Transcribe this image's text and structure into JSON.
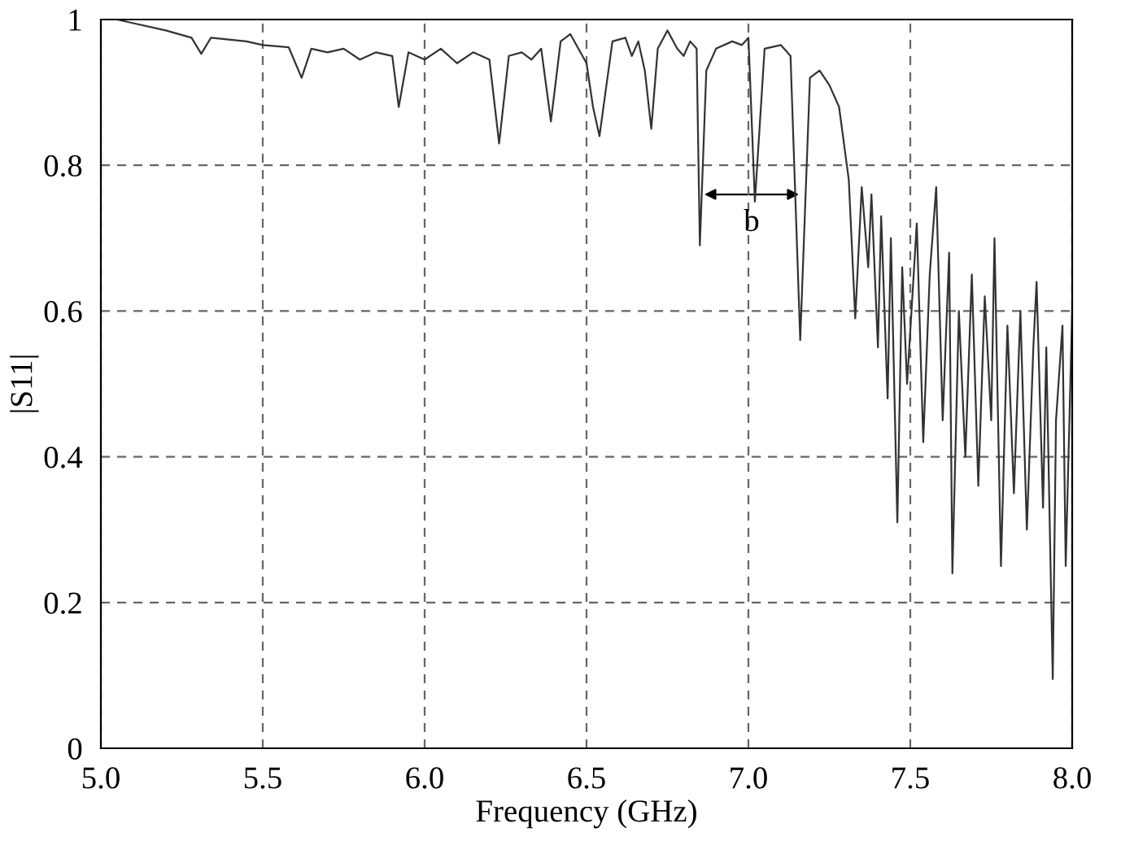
{
  "chart_data": {
    "type": "line",
    "xlabel": "Frequency (GHz)",
    "ylabel": "|S11|",
    "x": [
      5.0,
      5.05,
      5.1,
      5.2,
      5.28,
      5.31,
      5.34,
      5.45,
      5.5,
      5.58,
      5.62,
      5.65,
      5.7,
      5.75,
      5.8,
      5.85,
      5.9,
      5.92,
      5.95,
      6.0,
      6.05,
      6.1,
      6.15,
      6.2,
      6.23,
      6.26,
      6.3,
      6.33,
      6.36,
      6.39,
      6.42,
      6.45,
      6.5,
      6.52,
      6.54,
      6.58,
      6.62,
      6.64,
      6.66,
      6.68,
      6.7,
      6.72,
      6.75,
      6.78,
      6.8,
      6.82,
      6.84,
      6.85,
      6.87,
      6.9,
      6.95,
      6.98,
      7.0,
      7.02,
      7.05,
      7.1,
      7.13,
      7.16,
      7.19,
      7.22,
      7.25,
      7.28,
      7.31,
      7.33,
      7.35,
      7.37,
      7.38,
      7.4,
      7.41,
      7.43,
      7.44,
      7.46,
      7.475,
      7.49,
      7.52,
      7.54,
      7.56,
      7.58,
      7.6,
      7.62,
      7.63,
      7.65,
      7.67,
      7.69,
      7.71,
      7.73,
      7.75,
      7.76,
      7.78,
      7.8,
      7.82,
      7.84,
      7.86,
      7.88,
      7.89,
      7.91,
      7.92,
      7.94,
      7.95,
      7.97,
      7.98,
      8.0
    ],
    "values": [
      1.0,
      1.0,
      0.995,
      0.985,
      0.975,
      0.953,
      0.975,
      0.97,
      0.965,
      0.962,
      0.92,
      0.96,
      0.955,
      0.96,
      0.945,
      0.955,
      0.95,
      0.88,
      0.955,
      0.945,
      0.96,
      0.94,
      0.955,
      0.945,
      0.83,
      0.95,
      0.955,
      0.945,
      0.96,
      0.86,
      0.97,
      0.98,
      0.94,
      0.88,
      0.84,
      0.97,
      0.975,
      0.95,
      0.97,
      0.93,
      0.85,
      0.96,
      0.985,
      0.96,
      0.95,
      0.97,
      0.96,
      0.69,
      0.93,
      0.96,
      0.97,
      0.965,
      0.975,
      0.75,
      0.96,
      0.965,
      0.95,
      0.56,
      0.92,
      0.93,
      0.91,
      0.88,
      0.78,
      0.59,
      0.77,
      0.66,
      0.76,
      0.55,
      0.73,
      0.48,
      0.7,
      0.31,
      0.66,
      0.5,
      0.72,
      0.42,
      0.65,
      0.77,
      0.45,
      0.68,
      0.24,
      0.6,
      0.4,
      0.65,
      0.36,
      0.62,
      0.45,
      0.7,
      0.25,
      0.58,
      0.35,
      0.6,
      0.3,
      0.55,
      0.64,
      0.33,
      0.55,
      0.095,
      0.45,
      0.58,
      0.25,
      0.6
    ],
    "color": "#333333",
    "line_style": "solid",
    "marker": "none",
    "xlim": [
      5.0,
      8.0
    ],
    "ylim": [
      0,
      1
    ],
    "xticks": [
      {
        "value": 5.0,
        "label": "5.0"
      },
      {
        "value": 5.5,
        "label": "5.5"
      },
      {
        "value": 6.0,
        "label": "6.0"
      },
      {
        "value": 6.5,
        "label": "6.5"
      },
      {
        "value": 7.0,
        "label": "7.0"
      },
      {
        "value": 7.5,
        "label": "7.5"
      },
      {
        "value": 8.0,
        "label": "8.0"
      }
    ],
    "yticks": [
      0,
      0.2,
      0.4,
      0.6,
      0.8,
      1
    ],
    "grid": true,
    "annotations": [
      {
        "text": "b",
        "x": 7.01,
        "y": 0.74
      }
    ]
  }
}
